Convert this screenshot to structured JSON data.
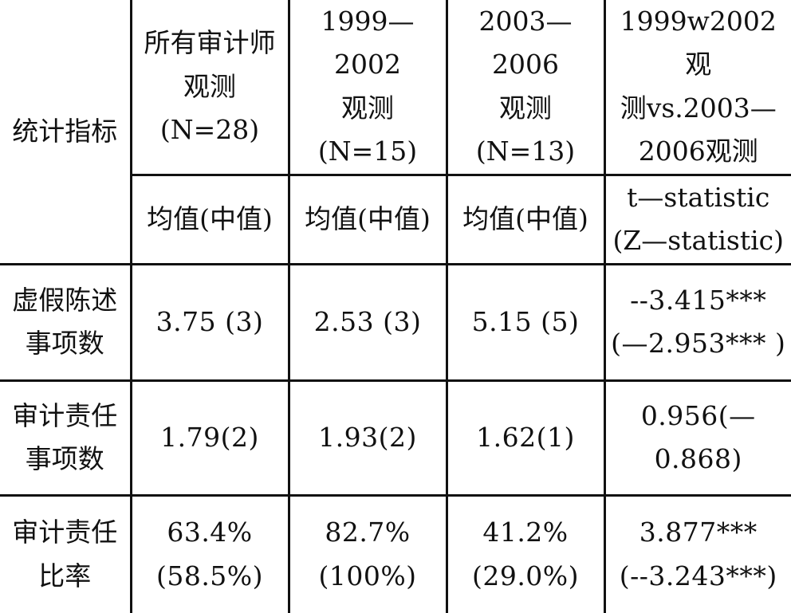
{
  "table": {
    "header": {
      "indicator_label": "统计指标",
      "columns": [
        "所有审计师\n观测\n(N=28)",
        "1999—2002\n观测\n(N=15)",
        "2003—2006\n观测\n(N=13)",
        "1999w2002观\n测vs.2003—\n2006观测"
      ]
    },
    "subheader": {
      "columns": [
        "均值(中值)",
        "均值(中值)",
        "均值(中值)",
        "t—statistic\n(Z—statistic)"
      ]
    },
    "rows": [
      {
        "label": "虚假陈述\n事项数",
        "cells": [
          "3.75 (3)",
          "2.53 (3)",
          "5.15 (5)",
          "--3.415***\n(—2.953*** )"
        ]
      },
      {
        "label": "审计责任\n事项数",
        "cells": [
          "1.79(2)",
          "1.93(2)",
          "1.62(1)",
          "0.956(—0.868)"
        ]
      },
      {
        "label": "审计责任\n比率",
        "cells": [
          "63.4%\n(58.5%)",
          "82.7%\n(100%)",
          "41.2%\n(29.0%)",
          "3.877***\n(--3.243***)"
        ]
      }
    ]
  }
}
